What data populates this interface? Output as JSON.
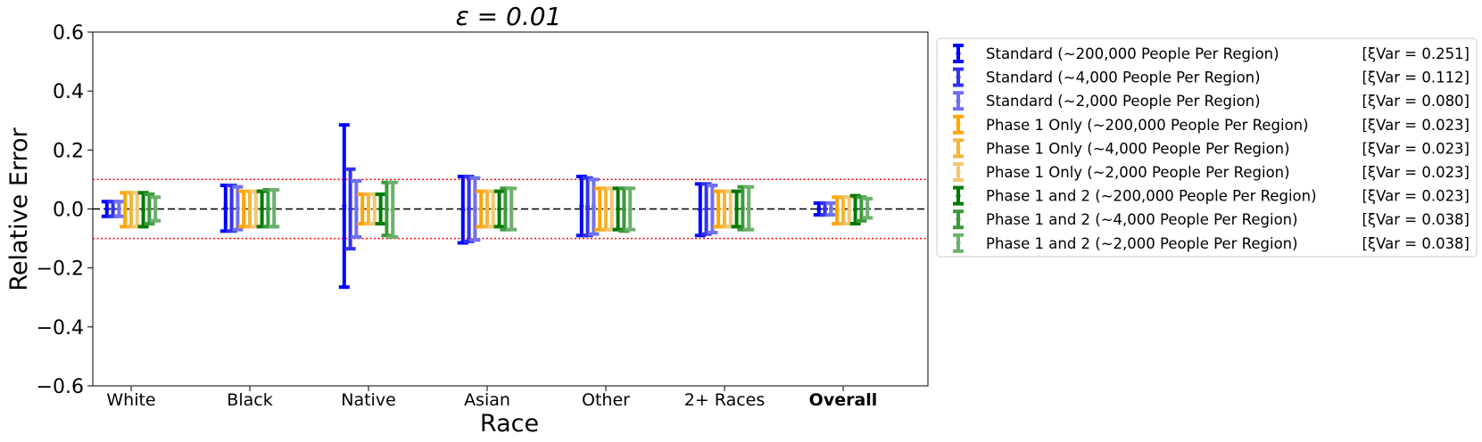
{
  "chart_data": {
    "type": "errorbar",
    "title": "ε = 0.01",
    "xlabel": "Race",
    "ylabel": "Relative Error",
    "ylim": [
      -0.6,
      0.6
    ],
    "yticks": [
      "0.6",
      "0.4",
      "0.2",
      "0.0",
      "−0.2",
      "−0.4",
      "−0.6"
    ],
    "ytick_values": [
      0.6,
      0.4,
      0.2,
      0.0,
      -0.2,
      -0.4,
      -0.6
    ],
    "categories": [
      "White",
      "Black",
      "Native",
      "Asian",
      "Other",
      "2+ Races",
      "Overall"
    ],
    "bold_categories": [
      "Overall"
    ],
    "reference_lines": [
      {
        "y": 0.0,
        "style": "dashed",
        "color": "#000000"
      },
      {
        "y": 0.1,
        "style": "dotted",
        "color": "#ff0000"
      },
      {
        "y": -0.1,
        "style": "dotted",
        "color": "#ff0000"
      }
    ],
    "legend_placement": "outside right",
    "series": [
      {
        "name": "Standard (~200,000 People Per Region)",
        "xi": "[ξVar = 0.251]",
        "color": "#0000ff",
        "lower": [
          -0.025,
          -0.075,
          -0.265,
          -0.115,
          -0.09,
          -0.09,
          -0.02
        ],
        "upper": [
          0.025,
          0.08,
          0.285,
          0.11,
          0.11,
          0.085,
          0.02
        ]
      },
      {
        "name": "Standard (~4,000 People Per Region)",
        "xi": "[ξVar = 0.112]",
        "color": "#3333ee",
        "lower": [
          -0.025,
          -0.075,
          -0.135,
          -0.11,
          -0.09,
          -0.085,
          -0.02
        ],
        "upper": [
          0.025,
          0.08,
          0.135,
          0.11,
          0.105,
          0.085,
          0.02
        ]
      },
      {
        "name": "Standard (~2,000 People Per Region)",
        "xi": "[ξVar = 0.080]",
        "color": "#7070ee",
        "lower": [
          -0.025,
          -0.07,
          -0.095,
          -0.105,
          -0.085,
          -0.08,
          -0.02
        ],
        "upper": [
          0.025,
          0.075,
          0.095,
          0.105,
          0.1,
          0.08,
          0.02
        ]
      },
      {
        "name": "Phase 1 Only (~200,000 People Per Region)",
        "xi": "[ξVar = 0.023]",
        "color": "#ffa500",
        "lower": [
          -0.06,
          -0.06,
          -0.05,
          -0.06,
          -0.07,
          -0.06,
          -0.05
        ],
        "upper": [
          0.055,
          0.06,
          0.05,
          0.06,
          0.07,
          0.06,
          0.04
        ]
      },
      {
        "name": "Phase 1 Only (~4,000 People Per Region)",
        "xi": "[ξVar = 0.023]",
        "color": "#f5b53a",
        "lower": [
          -0.06,
          -0.06,
          -0.05,
          -0.06,
          -0.07,
          -0.06,
          -0.05
        ],
        "upper": [
          0.055,
          0.06,
          0.05,
          0.06,
          0.07,
          0.06,
          0.04
        ]
      },
      {
        "name": "Phase 1 Only (~2,000 People Per Region)",
        "xi": "[ξVar = 0.023]",
        "color": "#f0c878",
        "lower": [
          -0.06,
          -0.06,
          -0.05,
          -0.06,
          -0.07,
          -0.06,
          -0.05
        ],
        "upper": [
          0.055,
          0.06,
          0.05,
          0.06,
          0.07,
          0.06,
          0.04
        ]
      },
      {
        "name": "Phase 1 and 2 (~200,000 People Per Region)",
        "xi": "[ξVar = 0.023]",
        "color": "#007a00",
        "lower": [
          -0.06,
          -0.06,
          -0.05,
          -0.06,
          -0.07,
          -0.06,
          -0.05
        ],
        "upper": [
          0.055,
          0.06,
          0.05,
          0.06,
          0.07,
          0.06,
          0.045
        ]
      },
      {
        "name": "Phase 1 and 2 (~4,000 People Per Region)",
        "xi": "[ξVar = 0.038]",
        "color": "#3a9a3a",
        "lower": [
          -0.05,
          -0.06,
          -0.09,
          -0.07,
          -0.075,
          -0.07,
          -0.04
        ],
        "upper": [
          0.05,
          0.065,
          0.09,
          0.07,
          0.07,
          0.075,
          0.04
        ]
      },
      {
        "name": "Phase 1 and 2 (~2,000 People Per Region)",
        "xi": "[ξVar = 0.038]",
        "color": "#6cb06c",
        "lower": [
          -0.04,
          -0.06,
          -0.095,
          -0.07,
          -0.07,
          -0.07,
          -0.03
        ],
        "upper": [
          0.04,
          0.065,
          0.09,
          0.07,
          0.07,
          0.075,
          0.035
        ]
      }
    ]
  }
}
